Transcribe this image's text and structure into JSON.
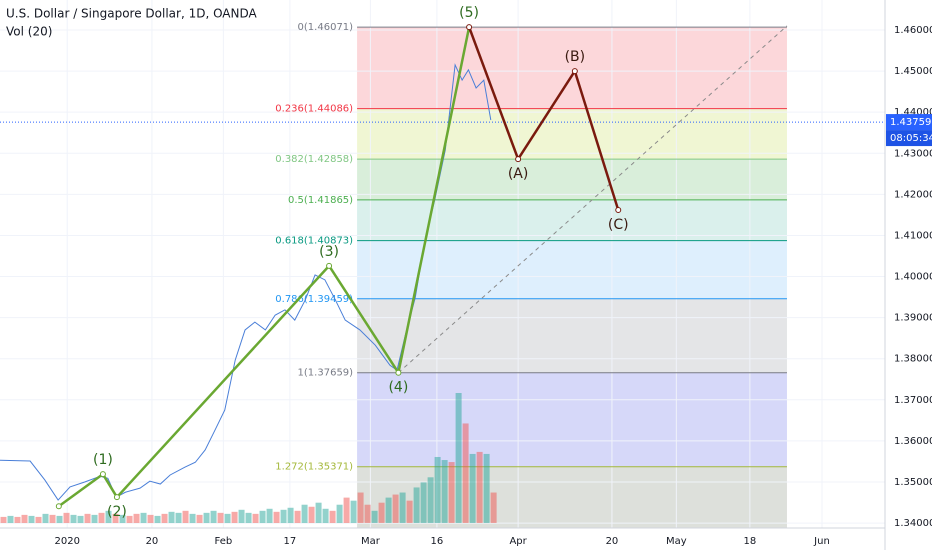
{
  "chart_data": {
    "type": "line",
    "title": "U.S. Dollar / Singapore Dollar, 1D, OANDA",
    "subtitle": "Vol (20)",
    "xlim": [
      0,
      126.4
    ],
    "xticks": [
      {
        "value": 9.6,
        "label": "2020"
      },
      {
        "value": 21.7,
        "label": "20"
      },
      {
        "value": 31.9,
        "label": "Feb"
      },
      {
        "value": 41.4,
        "label": "17"
      },
      {
        "value": 52.9,
        "label": "Mar"
      },
      {
        "value": 62.4,
        "label": "16"
      },
      {
        "value": 74,
        "label": "Apr"
      },
      {
        "value": 87.4,
        "label": "20"
      },
      {
        "value": 96.6,
        "label": "May"
      },
      {
        "value": 107.1,
        "label": "18"
      },
      {
        "value": 117.4,
        "label": "Jun"
      }
    ],
    "ylim": [
      1.3388,
      1.4673
    ],
    "yticks": [
      {
        "value": 1.34,
        "label": "1.34000"
      },
      {
        "value": 1.35,
        "label": "1.35000"
      },
      {
        "value": 1.36,
        "label": "1.36000"
      },
      {
        "value": 1.37,
        "label": "1.37000"
      },
      {
        "value": 1.38,
        "label": "1.38000"
      },
      {
        "value": 1.39,
        "label": "1.39000"
      },
      {
        "value": 1.4,
        "label": "1.40000"
      },
      {
        "value": 1.41,
        "label": "1.41000"
      },
      {
        "value": 1.42,
        "label": "1.42000"
      },
      {
        "value": 1.43,
        "label": "1.43000"
      },
      {
        "value": 1.44,
        "label": "1.44000"
      },
      {
        "value": 1.45,
        "label": "1.45000"
      },
      {
        "value": 1.46,
        "label": "1.46000"
      }
    ],
    "grid": true,
    "series": [
      {
        "color": "#4a7fd8",
        "x": [
          0,
          4.3,
          6.4,
          8.3,
          10,
          12.1,
          14.3,
          15.4,
          16.6,
          17.9,
          20,
          21.4,
          22.9,
          24.3,
          26.4,
          27.9,
          29.3,
          30.7,
          32.1,
          33.6,
          35,
          36.4,
          37.9,
          39.3,
          40.7,
          42.1,
          43.6,
          45,
          46.4,
          47.9,
          49.3,
          51.4,
          53.6,
          55.7,
          56.7,
          57.9,
          59.3,
          60.7,
          62.1,
          63.6,
          65,
          66,
          66.9,
          68,
          69.1,
          70.1
        ],
        "values": [
          1.3553,
          1.3551,
          1.3505,
          1.3456,
          1.3488,
          1.35,
          1.3514,
          1.3509,
          1.3463,
          1.3475,
          1.3485,
          1.3502,
          1.3495,
          1.3517,
          1.3536,
          1.3548,
          1.3578,
          1.3626,
          1.3675,
          1.3797,
          1.387,
          1.3889,
          1.387,
          1.3906,
          1.3919,
          1.3894,
          1.3943,
          1.4004,
          1.3992,
          1.3943,
          1.3894,
          1.387,
          1.3833,
          1.3784,
          1.3772,
          1.3858,
          1.3948,
          1.4089,
          1.4187,
          1.4308,
          1.4515,
          1.4478,
          1.4503,
          1.4459,
          1.4478,
          1.4381
        ]
      }
    ],
    "wave": {
      "x": [
        8.4,
        14.7,
        16.7,
        47,
        56.9,
        67,
        74,
        82.1,
        88.3
      ],
      "values": [
        1.3441,
        1.3519,
        1.3463,
        1.4026,
        1.37659,
        1.46071,
        1.42858,
        1.45,
        1.4162
      ],
      "labels": [
        null,
        "(1)",
        "(2)",
        "(3)",
        "(4)",
        "(5)",
        "(A)",
        "(B)",
        "(C)"
      ],
      "impulse_color": "#6aa832",
      "corrective_color": "#7a1a0e",
      "impulse_label_color": "#2e6b1f",
      "corrective_label_color": "#3a1a10"
    },
    "fib": {
      "x": [
        51,
        112.4
      ],
      "levels": [
        {
          "value": 1.46071,
          "label": "0(1.46071)"
        },
        {
          "value": 1.44086,
          "label": "0.236(1.44086)"
        },
        {
          "value": 1.42858,
          "label": "0.382(1.42858)"
        },
        {
          "value": 1.41865,
          "label": "0.5(1.41865)"
        },
        {
          "value": 1.40873,
          "label": "0.618(1.40873)"
        },
        {
          "value": 1.39459,
          "label": "0.786(1.39459)"
        },
        {
          "value": 1.37659,
          "label": "1(1.37659)"
        },
        {
          "value": 1.35371,
          "label": "1.272(1.35371)"
        }
      ],
      "line_colors": [
        "#787b86",
        "#f23645",
        "#81c784",
        "#4caf50",
        "#089981",
        "#2196f3",
        "#787b86",
        "#a4b83a"
      ],
      "fill_colors": [
        "rgba(242,54,69,0.2)",
        "rgba(205,225,110,0.3)",
        "rgba(129,199,132,0.3)",
        "rgba(8,153,129,0.15)",
        "rgba(33,150,243,0.15)",
        "rgba(120,123,134,0.2)",
        "rgba(90,100,230,0.25)",
        "rgba(120,130,110,0.25)"
      ]
    },
    "trend_line": {
      "x": [
        56.9,
        112.4
      ],
      "values": [
        1.37659,
        1.461
      ],
      "color": "#8a8a8a"
    },
    "volume": {
      "values": [
        6,
        7,
        6,
        8,
        7,
        6,
        9,
        8,
        7,
        10,
        8,
        7,
        9,
        8,
        10,
        12,
        9,
        8,
        7,
        9,
        10,
        8,
        7,
        9,
        11,
        10,
        12,
        9,
        8,
        10,
        12,
        10,
        9,
        11,
        13,
        10,
        9,
        12,
        14,
        11,
        13,
        15,
        12,
        18,
        16,
        20,
        14,
        12,
        18,
        25,
        22,
        30,
        18,
        12,
        20,
        25,
        28,
        30,
        22,
        35,
        40,
        45,
        65,
        62,
        60,
        128,
        98,
        68,
        70,
        68,
        30
      ],
      "directions": [
        "d",
        "u",
        "d",
        "d",
        "u",
        "d",
        "u",
        "d",
        "u",
        "d",
        "u",
        "u",
        "d",
        "u",
        "d",
        "u",
        "d",
        "u",
        "d",
        "d",
        "u",
        "d",
        "u",
        "d",
        "u",
        "u",
        "d",
        "u",
        "d",
        "u",
        "u",
        "d",
        "u",
        "d",
        "u",
        "u",
        "d",
        "u",
        "u",
        "d",
        "u",
        "u",
        "d",
        "u",
        "d",
        "u",
        "u",
        "d",
        "u",
        "d",
        "u",
        "d",
        "d",
        "u",
        "d",
        "u",
        "d",
        "u",
        "d",
        "u",
        "u",
        "u",
        "u",
        "u",
        "d",
        "u",
        "d",
        "u",
        "d",
        "u",
        "d"
      ],
      "up_color": "rgba(38,166,154,0.5)",
      "down_color": "rgba(239,83,80,0.5)",
      "max_height": 130
    },
    "last_price": {
      "value": 1.43759,
      "label": "1.43759",
      "color": "#2962ff"
    },
    "countdown": "08:05:34"
  }
}
